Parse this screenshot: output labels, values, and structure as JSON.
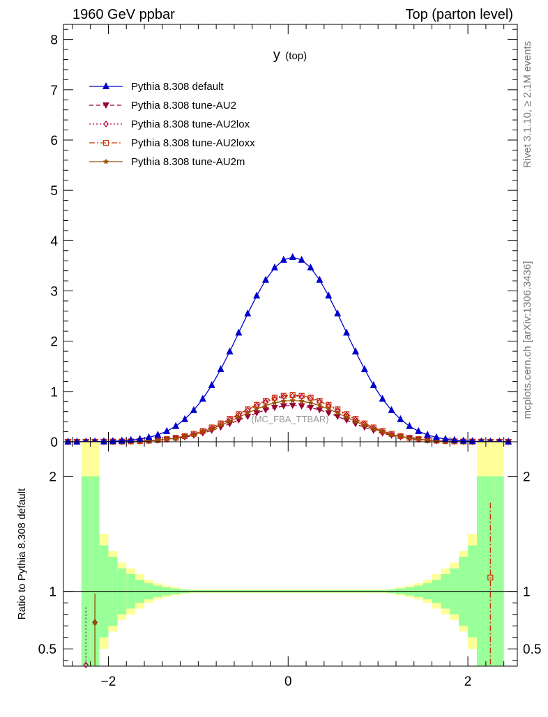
{
  "header": {
    "left": "1960 GeV ppbar",
    "right": "Top (parton level)"
  },
  "side": {
    "rivet": "Rivet 3.1.10, ≥ 2.1M events",
    "mcplots": "mcplots.cern.ch [arXiv:1306.3436]"
  },
  "plot_title_main": "y",
  "plot_title_sub": "(top)",
  "watermark": "(MC_FBA_TTBAR)",
  "ratio_ylabel": "Ratio to Pythia 8.308 default",
  "colors": {
    "default": "#0000cc",
    "au2": "#990033",
    "au2lox": "#b30047",
    "au2loxx": "#cc3300",
    "au2m": "#994d00",
    "band_inner": "#99ff99",
    "band_outer": "#ffff99"
  },
  "chart_data": [
    {
      "type": "line",
      "name": "main",
      "xlim": [
        -2.5,
        2.55
      ],
      "ylim": [
        0,
        8.3
      ],
      "yticks": [
        0,
        1,
        2,
        3,
        4,
        5,
        6,
        7,
        8
      ],
      "ytick_labels": [
        "0",
        "1",
        "2",
        "3",
        "4",
        "5",
        "6",
        "7",
        "8"
      ],
      "legend_position": "top-left",
      "series": [
        {
          "name": "Pythia 8.308 default",
          "marker": "triangle-up",
          "dash": "solid",
          "color_key": "default",
          "amp": 3.67,
          "mu": 0.05,
          "sigma": 0.585
        },
        {
          "name": "Pythia 8.308 tune-AU2",
          "marker": "triangle-down",
          "dash": "dashed",
          "color_key": "au2",
          "amp": 0.72,
          "mu": 0.05,
          "sigma": 0.59
        },
        {
          "name": "Pythia 8.308 tune-AU2lox",
          "marker": "diamond",
          "dash": "dotted",
          "color_key": "au2lox",
          "amp": 0.91,
          "mu": 0.05,
          "sigma": 0.58
        },
        {
          "name": "Pythia 8.308 tune-AU2loxx",
          "marker": "open-square",
          "dash": "dashdot",
          "color_key": "au2loxx",
          "amp": 0.93,
          "mu": 0.05,
          "sigma": 0.585
        },
        {
          "name": "Pythia 8.308 tune-AU2m",
          "marker": "star",
          "dash": "solid",
          "color_key": "au2m",
          "amp": 0.82,
          "mu": 0.05,
          "sigma": 0.59
        }
      ]
    },
    {
      "type": "line",
      "name": "ratio",
      "xlim": [
        -2.5,
        2.55
      ],
      "ylim": [
        0.35,
        2.3
      ],
      "yticks": [
        0.5,
        1,
        2
      ],
      "ytick_labels": [
        "0.5",
        "1",
        "2"
      ],
      "xticks": [
        -2,
        0,
        2
      ],
      "xtick_labels": [
        "−2",
        "0",
        "2"
      ],
      "reference": 1,
      "band_bins": [
        -2.3,
        -2.2,
        -2.1,
        -2.0,
        -1.9,
        -1.8,
        -1.7,
        -1.6,
        -1.5,
        -1.4,
        -1.3,
        -1.2,
        -1.1,
        -1.0,
        1.0,
        1.1,
        1.2,
        1.3,
        1.4,
        1.5,
        1.6,
        1.7,
        1.8,
        1.9,
        2.0,
        2.1,
        2.2,
        2.3,
        2.4
      ],
      "band_inner_err": [
        1.0,
        1.0,
        0.4,
        0.3,
        0.2,
        0.15,
        0.1,
        0.07,
        0.05,
        0.035,
        0.025,
        0.015,
        0.01,
        0.01,
        0.01,
        0.015,
        0.025,
        0.035,
        0.05,
        0.07,
        0.1,
        0.15,
        0.2,
        0.3,
        0.4,
        1.0,
        1.0,
        1.0
      ],
      "band_outer_err": [
        1.5,
        1.5,
        0.5,
        0.35,
        0.25,
        0.2,
        0.15,
        0.1,
        0.07,
        0.05,
        0.035,
        0.02,
        0.015,
        0.015,
        0.015,
        0.02,
        0.035,
        0.05,
        0.07,
        0.1,
        0.15,
        0.2,
        0.25,
        0.35,
        0.5,
        1.5,
        1.5,
        1.5
      ],
      "points": [
        {
          "series": "Pythia 8.308 tune-AU2lox",
          "x": -2.25,
          "y": 0.36,
          "err_up": 0.5
        },
        {
          "series": "Pythia 8.308 tune-AU2lox",
          "x": -2.15,
          "y": 0.73,
          "err_up": 0.25
        },
        {
          "series": "Pythia 8.308 tune-AU2m",
          "x": -2.15,
          "y": 0.73,
          "err_up": 0.25
        },
        {
          "series": "Pythia 8.308 tune-AU2loxx",
          "x": 2.25,
          "y": 1.12,
          "err_up": 0.65
        }
      ]
    }
  ]
}
